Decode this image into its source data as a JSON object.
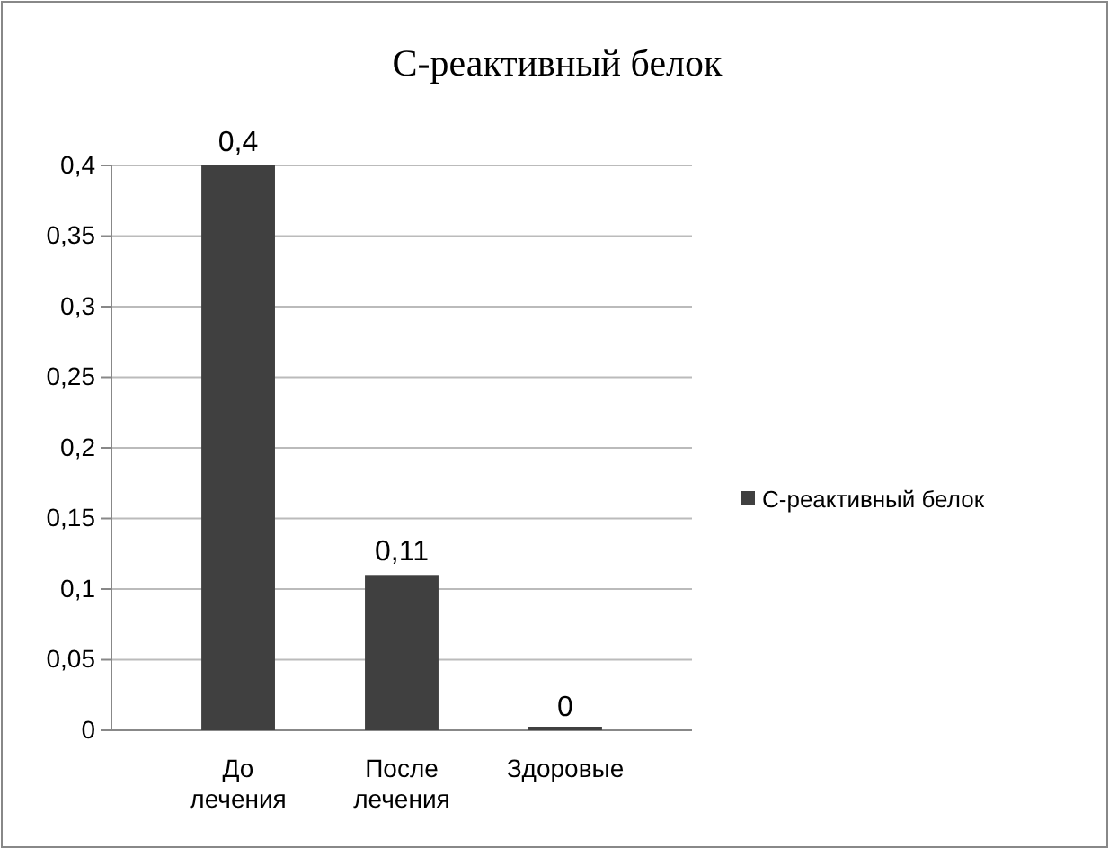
{
  "chart_data": {
    "type": "bar",
    "title": "С-реактивный белок",
    "categories": [
      "До лечения",
      "После лечения",
      "Здоровые"
    ],
    "series": [
      {
        "name": "С-реактивный белок",
        "color": "#404040",
        "values": [
          0.4,
          0.11,
          0
        ],
        "value_labels": [
          "0,4",
          "0,11",
          "0"
        ]
      }
    ],
    "ylim": [
      0,
      0.4
    ],
    "yticks": [
      0,
      {
        "value": 0.05,
        "label": "0,05"
      },
      {
        "value": 0.1,
        "label": "0,1"
      },
      {
        "value": 0.15,
        "label": "0,15"
      },
      {
        "value": 0.2,
        "label": "0,2"
      },
      {
        "value": 0.25,
        "label": "0,25"
      },
      {
        "value": 0.3,
        "label": "0,3"
      },
      {
        "value": 0.35,
        "label": "0,35"
      },
      {
        "value": 0.4,
        "label": "0,4"
      }
    ],
    "grid": "y",
    "legend": "right"
  }
}
